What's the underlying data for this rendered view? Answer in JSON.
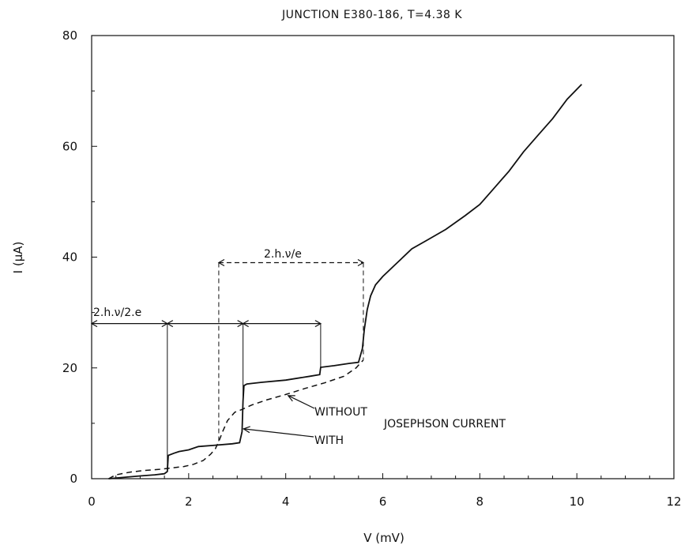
{
  "chart_data": {
    "type": "line",
    "title": "JUNCTION E380-186, T=4.38 K",
    "xlabel": "V (mV)",
    "ylabel": "I (μA)",
    "xlim": [
      0,
      12
    ],
    "ylim": [
      0,
      80
    ],
    "xticks": [
      "0",
      "2",
      "4",
      "6",
      "8",
      "10",
      "12"
    ],
    "yticks": [
      "0",
      "20",
      "40",
      "60",
      "80"
    ],
    "grid": false,
    "series": [
      {
        "name": "WITH",
        "style": "solid",
        "x": [
          0.35,
          0.6,
          1.0,
          1.3,
          1.5,
          1.56,
          1.58,
          1.7,
          1.8,
          2.0,
          2.2,
          2.5,
          2.9,
          3.05,
          3.1,
          3.12,
          3.14,
          3.2,
          3.5,
          4.0,
          4.5,
          4.7,
          4.72,
          5.0,
          5.3,
          5.5,
          5.58,
          5.62,
          5.68,
          5.75,
          5.85,
          6.0,
          6.3,
          6.6,
          6.9,
          7.3,
          7.7,
          8.0,
          8.3,
          8.6,
          8.9,
          9.2,
          9.5,
          9.8,
          10.1
        ],
        "y": [
          0.0,
          0.2,
          0.5,
          0.7,
          0.9,
          1.3,
          4.2,
          4.6,
          4.9,
          5.2,
          5.8,
          6.0,
          6.3,
          6.5,
          8.5,
          14.0,
          16.8,
          17.1,
          17.4,
          17.8,
          18.5,
          18.8,
          20.1,
          20.4,
          20.8,
          21.0,
          23.5,
          27.0,
          30.5,
          33.0,
          35.0,
          36.5,
          39.0,
          41.5,
          43.0,
          45.0,
          47.5,
          49.5,
          52.5,
          55.5,
          59.0,
          62.0,
          65.0,
          68.5,
          71.2
        ]
      },
      {
        "name": "WITHOUT",
        "style": "dashed",
        "x": [
          0.35,
          0.5,
          0.8,
          1.1,
          1.4,
          1.6,
          1.9,
          2.1,
          2.3,
          2.45,
          2.55,
          2.62,
          2.7,
          2.8,
          2.95,
          3.1,
          3.3,
          3.6,
          4.0,
          4.4,
          4.8,
          5.2,
          5.45,
          5.55,
          5.6
        ],
        "y": [
          0.0,
          0.7,
          1.2,
          1.5,
          1.7,
          1.9,
          2.2,
          2.6,
          3.3,
          4.4,
          5.4,
          6.7,
          8.5,
          10.5,
          12.0,
          12.5,
          13.3,
          14.2,
          15.2,
          16.3,
          17.3,
          18.5,
          20.0,
          21.0,
          21.4
        ]
      }
    ],
    "annotations": [
      {
        "text": "2.h.ν/2.e",
        "type": "label"
      },
      {
        "text": "2.h.ν/e",
        "type": "label"
      },
      {
        "text": "WITHOUT",
        "type": "arrow-label"
      },
      {
        "text": "WITH",
        "type": "arrow-label"
      },
      {
        "text": "JOSEPHSON CURRENT",
        "type": "label"
      }
    ],
    "markers": {
      "solid_vertical_x": [
        1.56,
        3.12,
        4.72
      ],
      "dashed_vertical_x": [
        2.62,
        5.6
      ],
      "half_step_arrow_level": 28,
      "full_step_arrow_level": 39,
      "with_pointer": {
        "x": 3.13,
        "y": 9
      },
      "without_pointer": {
        "x": 4.05,
        "y": 15
      }
    }
  }
}
